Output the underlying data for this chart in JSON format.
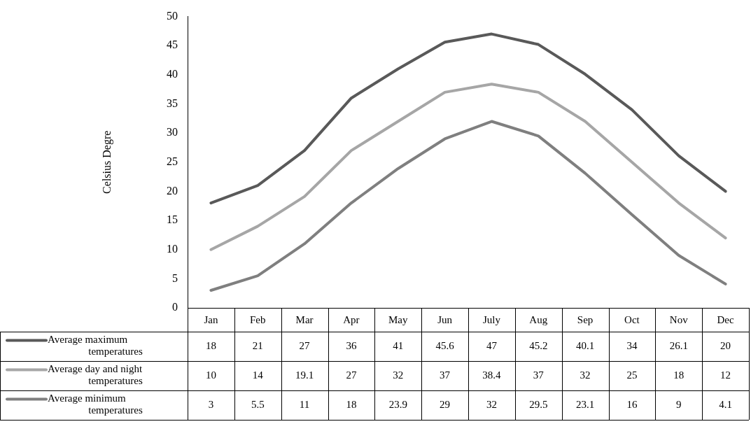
{
  "chart_data": {
    "type": "line",
    "ylabel": "Celsius Degre",
    "categories": [
      "Jan",
      "Feb",
      "Mar",
      "Apr",
      "May",
      "Jun",
      "July",
      "Aug",
      "Sep",
      "Oct",
      "Nov",
      "Dec"
    ],
    "series": [
      {
        "name": "Average maximum temperatures",
        "color": "#595959",
        "values": [
          18,
          21,
          27,
          36,
          41,
          45.6,
          47,
          45.2,
          40.1,
          34,
          26.1,
          20
        ]
      },
      {
        "name": "Average day and night temperatures",
        "color": "#a6a6a6",
        "values": [
          10,
          14,
          19.1,
          27,
          32,
          37,
          38.4,
          37,
          32,
          25,
          18,
          12
        ]
      },
      {
        "name": "Average minimum temperatures",
        "color": "#7f7f7f",
        "values": [
          3,
          5.5,
          11,
          18,
          23.9,
          29,
          32,
          29.5,
          23.1,
          16,
          9,
          4.1
        ]
      }
    ],
    "ylim": [
      0,
      50
    ],
    "yticks": [
      0,
      5,
      10,
      15,
      20,
      25,
      30,
      35,
      40,
      45,
      50
    ],
    "grid": false,
    "legend": "bottom",
    "marker": "none",
    "line_style": "solid",
    "data_labels": true
  }
}
